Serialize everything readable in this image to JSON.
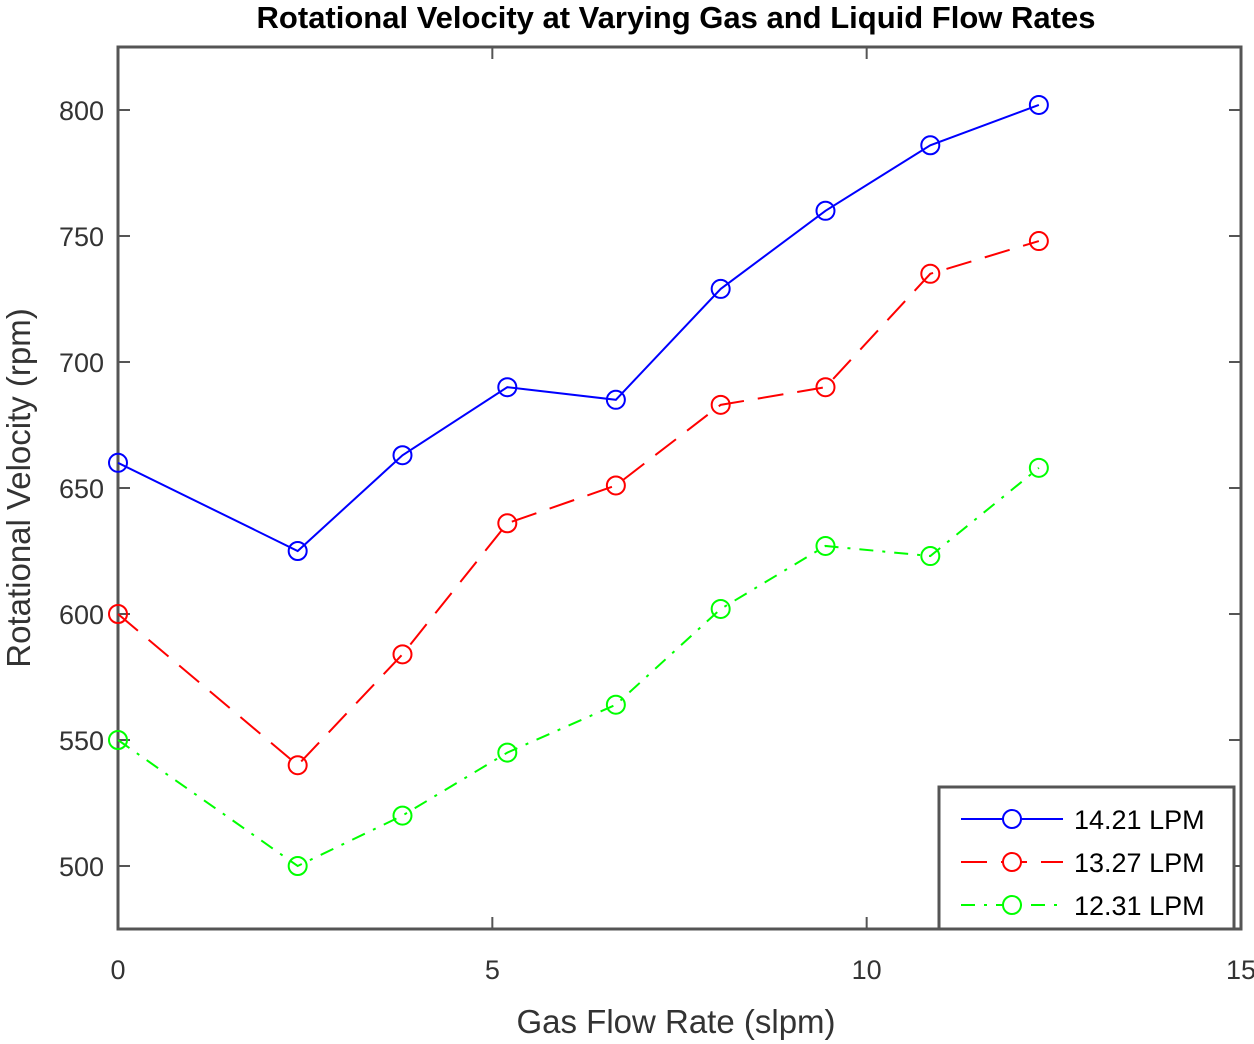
{
  "chart_data": {
    "type": "line",
    "title": "Rotational Velocity at Varying Gas and Liquid Flow Rates",
    "xlabel": "Gas Flow Rate (slpm)",
    "ylabel": "Rotational Velocity (rpm)",
    "xlim": [
      0,
      15
    ],
    "ylim": [
      475,
      825
    ],
    "xticks": [
      0,
      5,
      10,
      15
    ],
    "yticks": [
      500,
      550,
      600,
      650,
      700,
      750,
      800
    ],
    "x": [
      0,
      2.4,
      3.8,
      5.2,
      6.65,
      8.05,
      9.45,
      10.85,
      12.3
    ],
    "legend_position": "bottom-right",
    "series": [
      {
        "name": "14.21 LPM",
        "color": "#0000ff",
        "line_style": "solid",
        "marker": "circle",
        "values": [
          660,
          625,
          663,
          690,
          685,
          729,
          760,
          786,
          802
        ]
      },
      {
        "name": "13.27 LPM",
        "color": "#ff0000",
        "line_style": "dashed",
        "marker": "circle",
        "values": [
          600,
          540,
          584,
          636,
          651,
          683,
          690,
          735,
          748
        ]
      },
      {
        "name": "12.31 LPM",
        "color": "#00ff00",
        "line_style": "dashdot",
        "marker": "circle",
        "values": [
          550,
          500,
          520,
          545,
          564,
          602,
          627,
          623,
          658
        ]
      }
    ]
  }
}
